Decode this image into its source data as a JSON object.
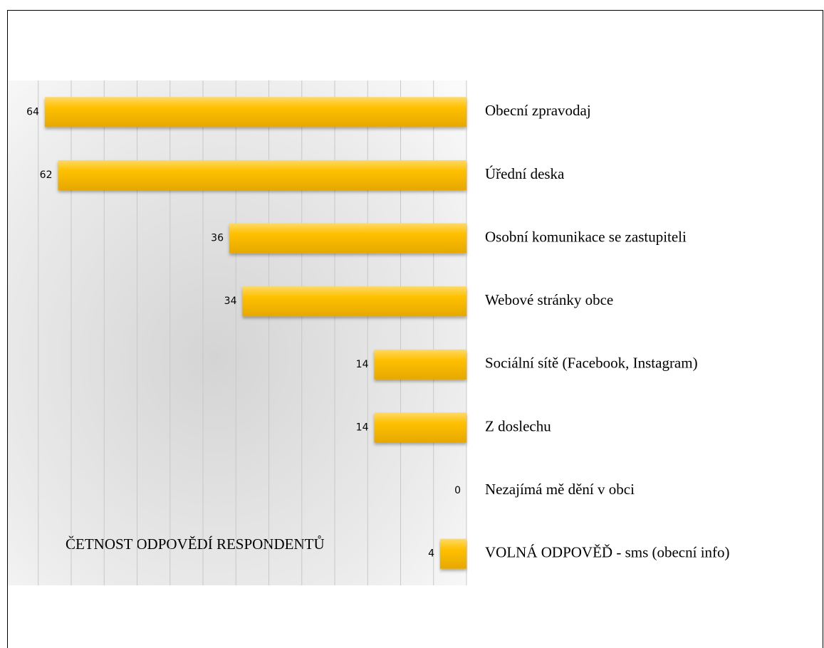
{
  "chart_data": {
    "type": "bar",
    "orientation": "horizontal",
    "x_reversed": true,
    "title": "ČETNOST ODPOVĚDÍ RESPONDENTŮ",
    "categories": [
      "Obecní zpravodaj",
      "Úřední deska",
      "Osobní komunikace se zastupiteli",
      "Webové stránky obce",
      "Sociální sítě (Facebook, Instagram)",
      "Z doslechu",
      "Nezajímá mě dění v obci",
      "VOLNÁ ODPOVĚĎ - sms (obecní info)"
    ],
    "values": [
      64,
      62,
      36,
      34,
      14,
      14,
      0,
      4
    ],
    "color": "#ffc000",
    "xlim": [
      0,
      70
    ],
    "xticks": [
      0,
      5,
      10,
      15,
      20,
      25,
      30,
      35,
      40,
      45,
      50,
      55,
      60,
      65,
      70
    ],
    "tick_labels": false,
    "grid": true
  }
}
